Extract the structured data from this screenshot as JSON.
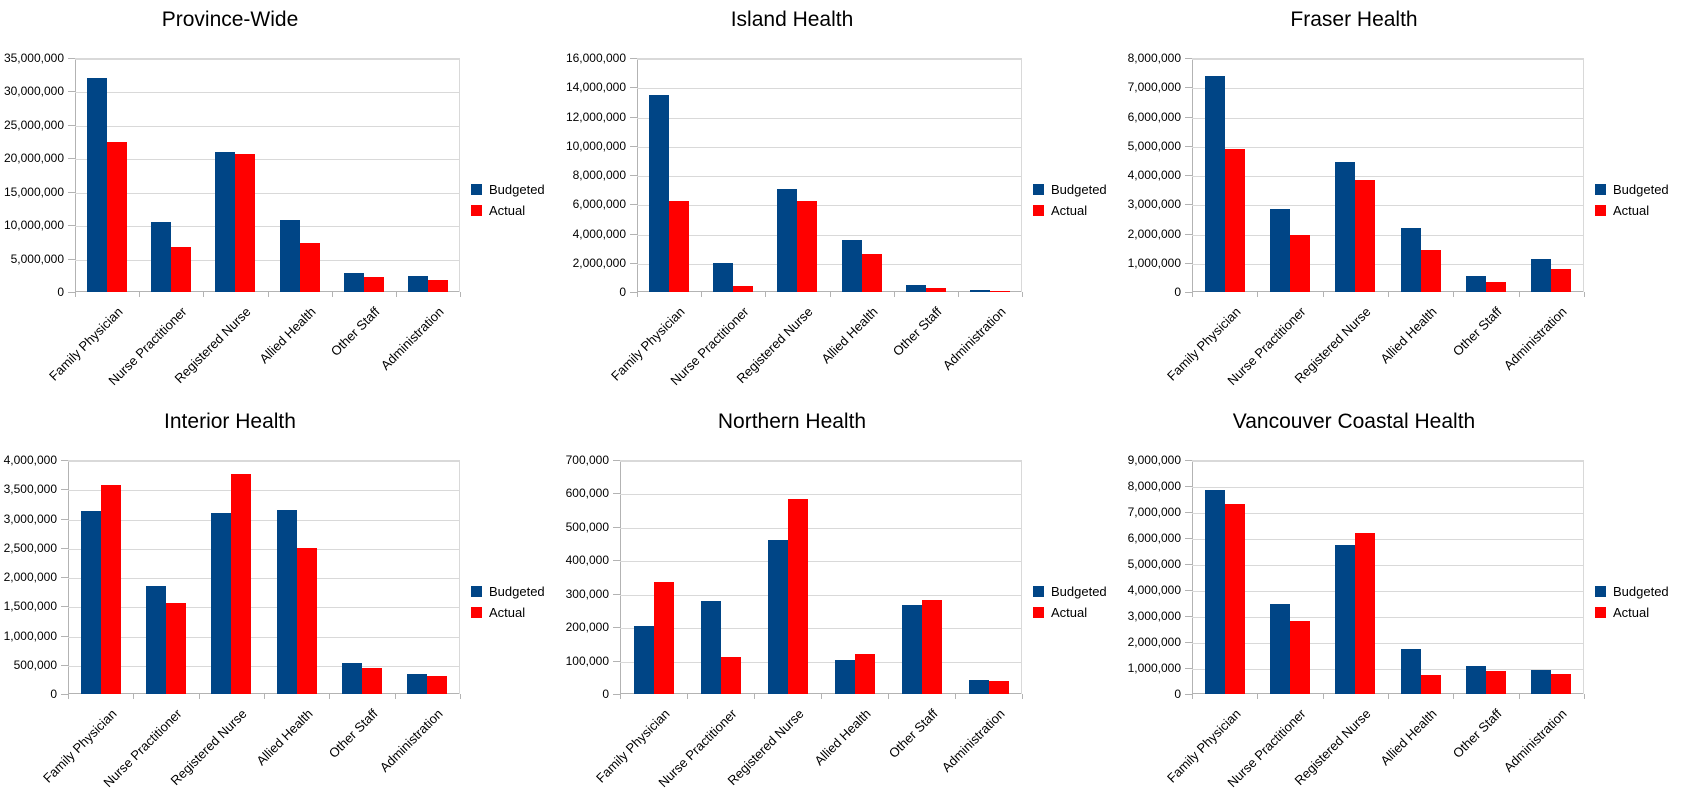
{
  "colors": {
    "budgeted": "#004586",
    "actual": "#ff0000",
    "gridline": "#d9d9d9",
    "axis": "#b3b3b3",
    "background": "#ffffff",
    "text": "#000000"
  },
  "legend": {
    "entries": [
      "Budgeted",
      "Actual"
    ],
    "position": "right"
  },
  "chart_data": [
    {
      "type": "bar",
      "title": "Province-Wide",
      "categories": [
        "Family Physician",
        "Nurse Practitioner",
        "Registered Nurse",
        "Allied Health",
        "Other Staff",
        "Administration"
      ],
      "series": [
        {
          "name": "Budgeted",
          "color": "#004586",
          "values": [
            32000000,
            10400000,
            20900000,
            10750000,
            2800000,
            2400000
          ]
        },
        {
          "name": "Actual",
          "color": "#ff0000",
          "values": [
            22400000,
            6800000,
            20600000,
            7300000,
            2200000,
            1850000
          ]
        }
      ],
      "xlabel": "",
      "ylabel": "",
      "ylim": [
        0,
        35000000
      ],
      "ytick_step": 5000000,
      "grid": true,
      "legend_position": "right"
    },
    {
      "type": "bar",
      "title": "Island Health",
      "categories": [
        "Family Physician",
        "Nurse Practitioner",
        "Registered Nurse",
        "Allied Health",
        "Other Staff",
        "Administration"
      ],
      "series": [
        {
          "name": "Budgeted",
          "color": "#004586",
          "values": [
            13500000,
            1950000,
            7050000,
            3560000,
            480000,
            110000
          ]
        },
        {
          "name": "Actual",
          "color": "#ff0000",
          "values": [
            6250000,
            430000,
            6200000,
            2570000,
            300000,
            40000
          ]
        }
      ],
      "xlabel": "",
      "ylabel": "",
      "ylim": [
        0,
        16000000
      ],
      "ytick_step": 2000000,
      "grid": true,
      "legend_position": "right"
    },
    {
      "type": "bar",
      "title": "Fraser Health",
      "categories": [
        "Family Physician",
        "Nurse Practitioner",
        "Registered Nurse",
        "Allied Health",
        "Other Staff",
        "Administration"
      ],
      "series": [
        {
          "name": "Budgeted",
          "color": "#004586",
          "values": [
            7370000,
            2840000,
            4460000,
            2190000,
            540000,
            1140000
          ]
        },
        {
          "name": "Actual",
          "color": "#ff0000",
          "values": [
            4890000,
            1950000,
            3840000,
            1420000,
            350000,
            770000
          ]
        }
      ],
      "xlabel": "",
      "ylabel": "",
      "ylim": [
        0,
        8000000
      ],
      "ytick_step": 1000000,
      "grid": true,
      "legend_position": "right"
    },
    {
      "type": "bar",
      "title": "Interior Health",
      "categories": [
        "Family Physician",
        "Nurse Practitioner",
        "Registered Nurse",
        "Allied Health",
        "Other Staff",
        "Administration"
      ],
      "series": [
        {
          "name": "Budgeted",
          "color": "#004586",
          "values": [
            3120000,
            1845000,
            3090000,
            3150000,
            525000,
            335000
          ]
        },
        {
          "name": "Actual",
          "color": "#ff0000",
          "values": [
            3575000,
            1555000,
            3755000,
            2500000,
            440000,
            305000
          ]
        }
      ],
      "xlabel": "",
      "ylabel": "",
      "ylim": [
        0,
        4000000
      ],
      "ytick_step": 500000,
      "grid": true,
      "legend_position": "right"
    },
    {
      "type": "bar",
      "title": "Northern Health",
      "categories": [
        "Family Physician",
        "Nurse Practitioner",
        "Registered Nurse",
        "Allied Health",
        "Other Staff",
        "Administration"
      ],
      "series": [
        {
          "name": "Budgeted",
          "color": "#004586",
          "values": [
            202000,
            277000,
            462000,
            102000,
            266000,
            41000
          ]
        },
        {
          "name": "Actual",
          "color": "#ff0000",
          "values": [
            334000,
            112000,
            584000,
            119000,
            282000,
            40000
          ]
        }
      ],
      "xlabel": "",
      "ylabel": "",
      "ylim": [
        0,
        700000
      ],
      "ytick_step": 100000,
      "grid": true,
      "legend_position": "right"
    },
    {
      "type": "bar",
      "title": "Vancouver Coastal Health",
      "categories": [
        "Family Physician",
        "Nurse Practitioner",
        "Registered Nurse",
        "Allied Health",
        "Other Staff",
        "Administration"
      ],
      "series": [
        {
          "name": "Budgeted",
          "color": "#004586",
          "values": [
            7840000,
            3460000,
            5740000,
            1740000,
            1060000,
            940000
          ]
        },
        {
          "name": "Actual",
          "color": "#ff0000",
          "values": [
            7300000,
            2790000,
            6180000,
            730000,
            890000,
            780000
          ]
        }
      ],
      "xlabel": "",
      "ylabel": "",
      "ylim": [
        0,
        9000000
      ],
      "ytick_step": 1000000,
      "grid": true,
      "legend_position": "right"
    }
  ]
}
